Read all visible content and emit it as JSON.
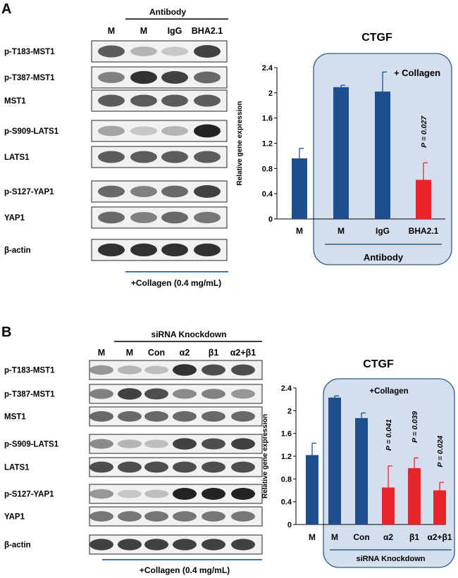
{
  "panel_a": {
    "letter": "A",
    "antibody_header": "Antibody",
    "lanes": [
      "M",
      "M",
      "IgG",
      "BHA2.1"
    ],
    "rows": [
      "p-T183-MST1",
      "p-T387-MST1",
      "MST1",
      "p-S909-LATS1",
      "LATS1",
      "p-S127-YAP1",
      "YAP1",
      "β-actin"
    ],
    "band_intensity": [
      [
        0.75,
        0.35,
        0.25,
        0.85
      ],
      [
        0.6,
        0.9,
        0.85,
        0.7
      ],
      [
        0.75,
        0.75,
        0.75,
        0.75
      ],
      [
        0.45,
        0.25,
        0.35,
        0.95
      ],
      [
        0.75,
        0.75,
        0.75,
        0.75
      ],
      [
        0.7,
        0.6,
        0.7,
        0.85
      ],
      [
        0.7,
        0.6,
        0.7,
        0.65
      ],
      [
        0.9,
        0.9,
        0.9,
        0.9
      ]
    ],
    "collagen_label": "+Collagen (0.4 mg/mL)"
  },
  "panel_b": {
    "letter": "B",
    "knockdown_header": "siRNA Knockdown",
    "lanes": [
      "M",
      "M",
      "Con",
      "α2",
      "β1",
      "α2+β1"
    ],
    "rows": [
      "p-T183-MST1",
      "p-T387-MST1",
      "MST1",
      "p-S909-LATS1",
      "LATS1",
      "p-S127-YAP1",
      "YAP1",
      "β-actin"
    ],
    "band_intensity": [
      [
        0.5,
        0.35,
        0.3,
        0.9,
        0.8,
        0.8
      ],
      [
        0.6,
        0.85,
        0.8,
        0.55,
        0.6,
        0.5
      ],
      [
        0.7,
        0.7,
        0.7,
        0.7,
        0.7,
        0.7
      ],
      [
        0.55,
        0.35,
        0.3,
        0.85,
        0.8,
        0.85
      ],
      [
        0.8,
        0.8,
        0.8,
        0.8,
        0.8,
        0.8
      ],
      [
        0.5,
        0.25,
        0.3,
        0.95,
        0.95,
        0.95
      ],
      [
        0.65,
        0.65,
        0.65,
        0.65,
        0.65,
        0.65
      ],
      [
        0.85,
        0.85,
        0.85,
        0.85,
        0.85,
        0.85
      ]
    ],
    "collagen_label": "+Collagen (0.4 mg/mL)"
  },
  "colors": {
    "blue_bar": "#1F4E8C",
    "red_bar": "#E8242B",
    "box_fill": "#D4DFEE",
    "box_stroke": "#2E5C8A"
  },
  "chart_data": [
    {
      "type": "bar",
      "title": "CTGF",
      "ylabel": "Relative gene expression",
      "xlabel": "",
      "categories": [
        "M",
        "M",
        "IgG",
        "BHA2.1"
      ],
      "values": [
        0.96,
        2.09,
        2.02,
        0.62
      ],
      "errors": [
        0.16,
        0.03,
        0.31,
        0.27
      ],
      "bar_colors": [
        "#1F4E8C",
        "#1F4E8C",
        "#1F4E8C",
        "#E8242B"
      ],
      "ylim": [
        0,
        2.4
      ],
      "yticks": [
        "0",
        "0.4",
        "0.8",
        "1.2",
        "1.6",
        "2",
        "2.4"
      ],
      "box_label": "+ Collagen",
      "group_label": "Antibody",
      "annotations": [
        {
          "category": "BHA2.1",
          "text": "P = 0.027"
        }
      ]
    },
    {
      "type": "bar",
      "title": "CTGF",
      "ylabel": "Relative gene expression",
      "xlabel": "",
      "categories": [
        "M",
        "M",
        "Con",
        "α2",
        "β1",
        "α2+β1"
      ],
      "values": [
        1.22,
        2.23,
        1.87,
        0.65,
        0.99,
        0.6
      ],
      "errors": [
        0.21,
        0.03,
        0.09,
        0.38,
        0.18,
        0.14
      ],
      "bar_colors": [
        "#1F4E8C",
        "#1F4E8C",
        "#1F4E8C",
        "#E8242B",
        "#E8242B",
        "#E8242B"
      ],
      "ylim": [
        0,
        2.4
      ],
      "yticks": [
        "0",
        "0.4",
        "0.8",
        "1.2",
        "1.6",
        "2",
        "2.4"
      ],
      "box_label": "+Collagen",
      "group_label": "siRNA Knockdown",
      "annotations": [
        {
          "category": "α2",
          "text": "P = 0.041"
        },
        {
          "category": "β1",
          "text": "P = 0.039"
        },
        {
          "category": "α2+β1",
          "text": "P = 0.024"
        }
      ]
    }
  ]
}
